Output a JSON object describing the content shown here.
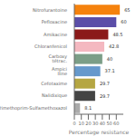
{
  "chart_data": {
    "type": "bar",
    "orientation": "horizontal",
    "categories": [
      "Trimethoprim-Sulfamethoxazol",
      "Nalidixique",
      "Cefotaxime",
      "Ampici lline",
      "Carboxy tétrac.",
      "Chloranfenicol",
      "Amikacine",
      "Pefloxacine",
      "Nitrofurantoine"
    ],
    "values": [
      8.1,
      29.7,
      29.7,
      37.1,
      40,
      42.8,
      48.5,
      60,
      65
    ],
    "colors": [
      "#aaaaaa",
      "#444444",
      "#b5a642",
      "#6699cc",
      "#7b9e87",
      "#f4b8c0",
      "#8b1a1a",
      "#5b4ea8",
      "#f5820d"
    ],
    "xlabel": "Percentage resistance",
    "xlim": [
      0,
      70
    ],
    "xticks": [
      0,
      10,
      20,
      30,
      40,
      50,
      60
    ],
    "data_labels": true,
    "grid": false
  }
}
